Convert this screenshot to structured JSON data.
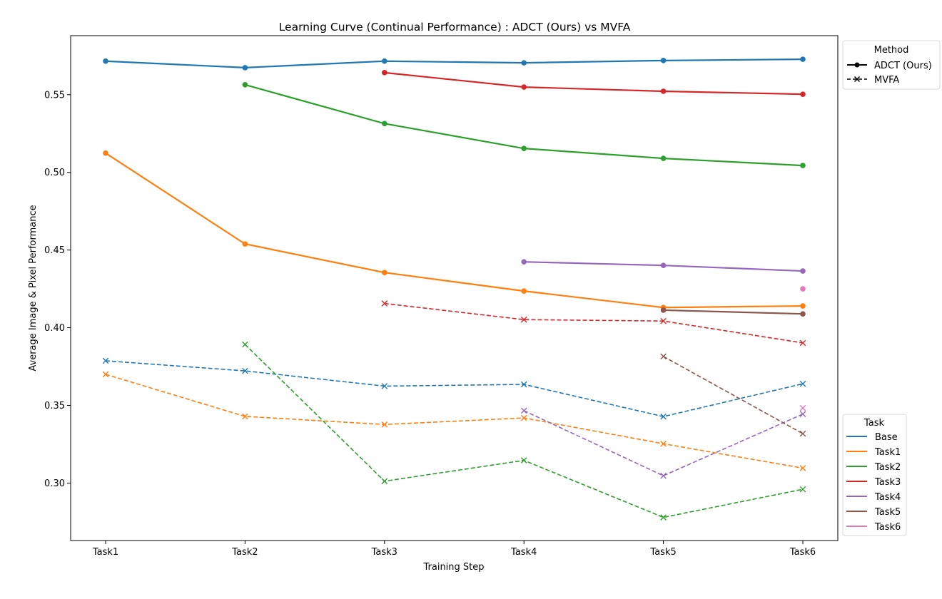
{
  "chart_data": {
    "type": "line",
    "title": "Learning Curve (Continual Performance) : ADCT (Ours) vs MVFA",
    "xlabel": "Training Step",
    "ylabel": "Average Image & Pixel Performance",
    "categories": [
      "Task1",
      "Task2",
      "Task3",
      "Task4",
      "Task5",
      "Task6"
    ],
    "ylim": [
      0.263,
      0.588
    ],
    "yticks": [
      0.3,
      0.35,
      0.4,
      0.45,
      0.5,
      0.55
    ],
    "ytick_labels": [
      "0.30",
      "0.35",
      "0.40",
      "0.45",
      "0.50",
      "0.55"
    ],
    "grid": false,
    "methods": [
      {
        "name": "ADCT (Ours)",
        "linestyle": "solid",
        "marker": "circle"
      },
      {
        "name": "MVFA",
        "linestyle": "dashed",
        "marker": "x"
      }
    ],
    "tasks": [
      {
        "name": "Base",
        "color": "#1f77b4"
      },
      {
        "name": "Task1",
        "color": "#ff7f0e"
      },
      {
        "name": "Task2",
        "color": "#2ca02c"
      },
      {
        "name": "Task3",
        "color": "#d62728"
      },
      {
        "name": "Task4",
        "color": "#9467bd"
      },
      {
        "name": "Task5",
        "color": "#8c564b"
      },
      {
        "name": "Task6",
        "color": "#e377c2"
      }
    ],
    "series": [
      {
        "method": "ADCT (Ours)",
        "task": "Base",
        "values": [
          0.5716,
          0.5674,
          0.5716,
          0.5705,
          0.572,
          0.5728
        ]
      },
      {
        "method": "ADCT (Ours)",
        "task": "Task1",
        "values": [
          0.5124,
          0.4539,
          0.4355,
          0.4236,
          0.413,
          0.414
        ]
      },
      {
        "method": "ADCT (Ours)",
        "task": "Task2",
        "values": [
          null,
          0.5564,
          0.5314,
          0.5154,
          0.509,
          0.5044
        ]
      },
      {
        "method": "ADCT (Ours)",
        "task": "Task3",
        "values": [
          null,
          null,
          0.5642,
          0.5549,
          0.5522,
          0.5503
        ]
      },
      {
        "method": "ADCT (Ours)",
        "task": "Task4",
        "values": [
          null,
          null,
          null,
          0.4424,
          0.4401,
          0.4365
        ]
      },
      {
        "method": "ADCT (Ours)",
        "task": "Task5",
        "values": [
          null,
          null,
          null,
          null,
          0.4113,
          0.4089
        ]
      },
      {
        "method": "ADCT (Ours)",
        "task": "Task6",
        "values": [
          null,
          null,
          null,
          null,
          null,
          0.425
        ]
      },
      {
        "method": "MVFA",
        "task": "Base",
        "values": [
          0.3787,
          0.3722,
          0.3624,
          0.3635,
          0.3428,
          0.3639
        ]
      },
      {
        "method": "MVFA",
        "task": "Task1",
        "values": [
          0.37,
          0.3429,
          0.3377,
          0.3419,
          0.3253,
          0.3096
        ]
      },
      {
        "method": "MVFA",
        "task": "Task2",
        "values": [
          null,
          0.3892,
          0.3012,
          0.3146,
          0.2779,
          0.296
        ]
      },
      {
        "method": "MVFA",
        "task": "Task3",
        "values": [
          null,
          null,
          0.4156,
          0.4052,
          0.4043,
          0.3902
        ]
      },
      {
        "method": "MVFA",
        "task": "Task4",
        "values": [
          null,
          null,
          null,
          0.3466,
          0.3047,
          0.3444
        ]
      },
      {
        "method": "MVFA",
        "task": "Task5",
        "values": [
          null,
          null,
          null,
          null,
          0.3815,
          0.3318
        ]
      },
      {
        "method": "MVFA",
        "task": "Task6",
        "values": [
          null,
          null,
          null,
          null,
          null,
          0.3483
        ]
      }
    ],
    "legends": {
      "method": {
        "title": "Method",
        "placement": "upper-right-outside"
      },
      "task": {
        "title": "Task",
        "placement": "lower-right-outside"
      }
    }
  }
}
